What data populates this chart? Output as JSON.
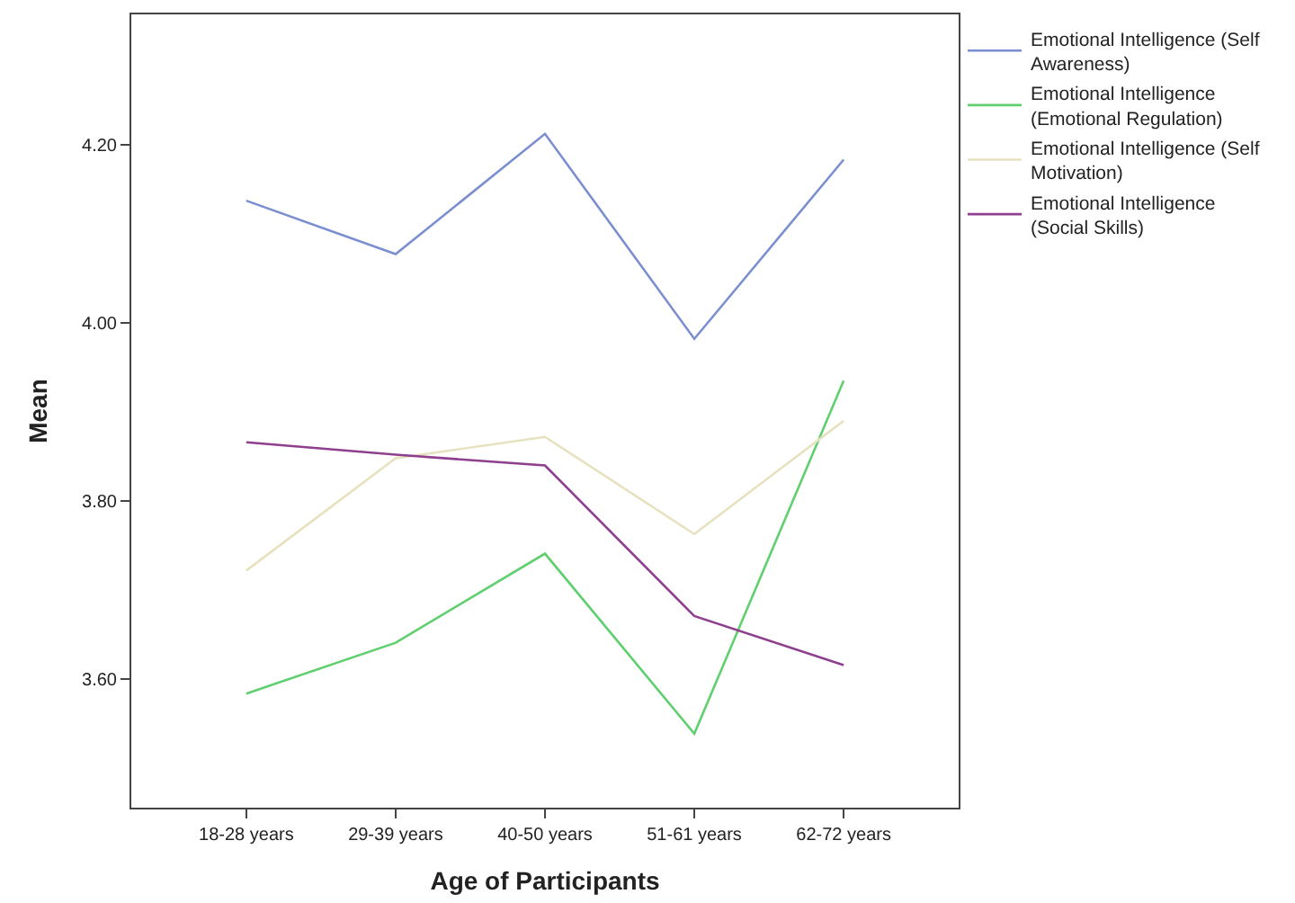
{
  "chart_data": {
    "type": "line",
    "xlabel": "Age of Participants",
    "ylabel": "Mean",
    "categories": [
      "18-28 years",
      "29-39 years",
      "40-50 years",
      "51-61 years",
      "62-72 years"
    ],
    "series": [
      {
        "name": "Emotional Intelligence (Self Awareness)",
        "color": "#7b8fd0",
        "values": [
          4.137,
          4.077,
          4.212,
          3.982,
          4.183
        ]
      },
      {
        "name": "Emotional Intelligence (Emotional Regulation)",
        "color": "#5fcf6f",
        "values": [
          3.584,
          3.641,
          3.741,
          3.539,
          3.935
        ]
      },
      {
        "name": "Emotional Intelligence (Self Motivation)",
        "color": "#e6e2c0",
        "values": [
          3.722,
          3.848,
          3.872,
          3.763,
          3.89
        ]
      },
      {
        "name": "Emotional Intelligence (Social Skills)",
        "color": "#8e3f8e",
        "values": [
          3.866,
          3.852,
          3.84,
          3.671,
          3.616
        ]
      }
    ],
    "ylim": [
      3.456,
      4.346
    ],
    "yticks": [
      {
        "value": 3.6,
        "label": "3.60"
      },
      {
        "value": 3.8,
        "label": "3.80"
      },
      {
        "value": 4.0,
        "label": "4.00"
      },
      {
        "value": 4.2,
        "label": "4.20"
      }
    ],
    "legend": "top right",
    "marker": "none",
    "line_style": "solid"
  }
}
